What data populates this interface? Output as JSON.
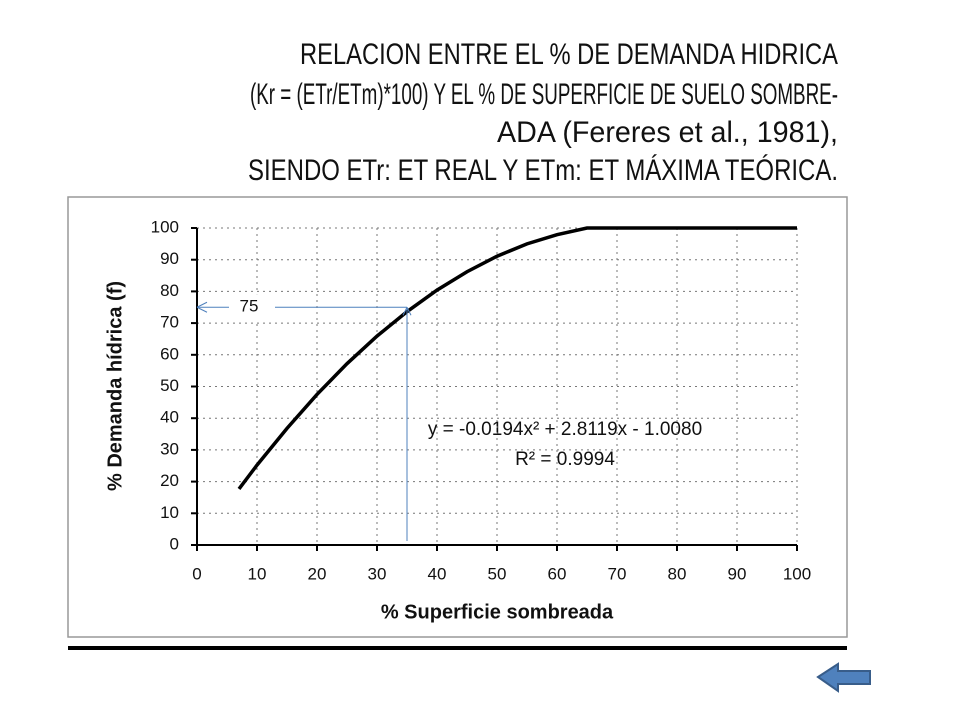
{
  "chart_data": {
    "type": "line",
    "title": [
      "RELACION ENTRE EL % DE DEMANDA HIDRICA",
      "(Kr = (ETr/ETm)*100) Y EL % DE SUPERFICIE DE SUELO SOMBRE-",
      "ADA (Fereres et al., 1981),",
      "SIENDO ETr: ET REAL Y ETm: ET MÁXIMA TEÓRICA."
    ],
    "x_label": "% Superficie sombreada",
    "y_label": "% Demanda hídrica (f)",
    "x": [
      7,
      10,
      15,
      20,
      25,
      30,
      35,
      40,
      45,
      50,
      55,
      60,
      65,
      70,
      80,
      90,
      100
    ],
    "series": [
      {
        "color": "#000000",
        "values": [
          17.7,
          25.2,
          36.8,
          47.5,
          57.2,
          65.9,
          73.6,
          80.4,
          86.2,
          91.1,
          95.0,
          97.9,
          100,
          100,
          100,
          100,
          100
        ]
      }
    ],
    "xlim": [
      0,
      100
    ],
    "ylim": [
      0,
      100
    ],
    "xticks": [
      0,
      10,
      20,
      30,
      40,
      50,
      60,
      70,
      80,
      90,
      100
    ],
    "yticks": [
      0,
      10,
      20,
      30,
      40,
      50,
      60,
      70,
      80,
      90,
      100
    ],
    "grid": true,
    "equation": "y = -0.0194x² + 2.8119x - 1.0080",
    "r_squared": "R² = 0.9994",
    "guide": {
      "x": 35,
      "y": 75,
      "color": "#4f81bd"
    }
  }
}
